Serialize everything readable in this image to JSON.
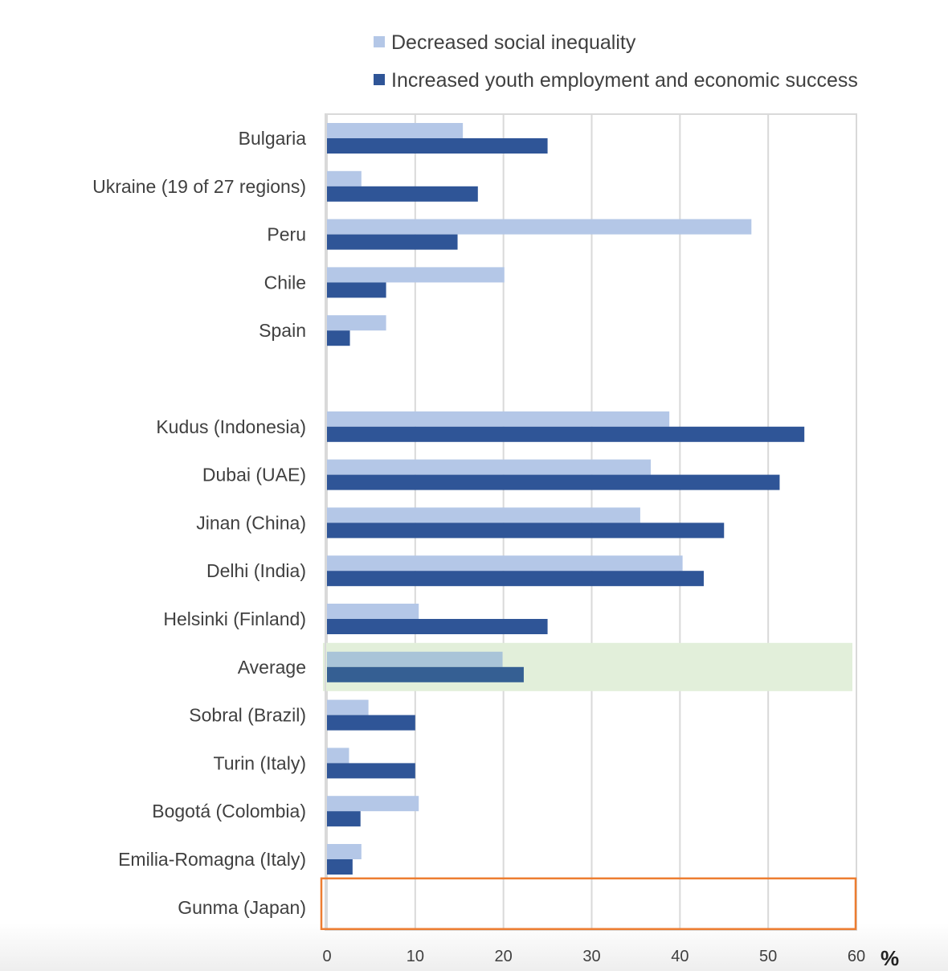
{
  "chart_data": {
    "type": "bar",
    "orientation": "horizontal",
    "title": "",
    "xlabel": "%",
    "ylabel": "",
    "xlim": [
      0,
      60
    ],
    "xticks": [
      0,
      10,
      20,
      30,
      40,
      50,
      60
    ],
    "grid": true,
    "legend_position": "top",
    "categories": [
      "Bulgaria",
      "Ukraine (19 of 27 regions)",
      "Peru",
      "Chile",
      "Spain",
      "Kudus (Indonesia)",
      "Dubai (UAE)",
      "Jinan (China)",
      "Delhi (India)",
      "Helsinki (Finland)",
      "Average",
      "Sobral (Brazil)",
      "Turin (Italy)",
      "Bogotá (Colombia)",
      "Emilia-Romagna (Italy)",
      "Gunma (Japan)"
    ],
    "gap_after_index": 4,
    "highlighted_category": "Average",
    "boxed_category": "Gunma (Japan)",
    "series": [
      {
        "name": "Decreased social inequality",
        "color": "#b4c7e7",
        "values": [
          15.4,
          3.9,
          48.1,
          20.1,
          6.7,
          38.8,
          36.7,
          35.5,
          40.3,
          10.4,
          19.9,
          4.7,
          2.5,
          10.4,
          3.9,
          null
        ]
      },
      {
        "name": "Increased youth employment and economic success",
        "color": "#2f5597",
        "values": [
          25,
          17.1,
          14.8,
          6.7,
          2.6,
          54.1,
          51.3,
          45,
          42.7,
          25,
          22.3,
          10,
          10,
          3.8,
          2.9,
          null
        ]
      }
    ]
  },
  "colors": {
    "highlight_band": "#e2efda",
    "highlight_light_bar": "#a9c4d8",
    "highlight_dark_bar": "#355f93",
    "box_outline": "#ed7d31",
    "gridline": "#d9d9d9"
  }
}
